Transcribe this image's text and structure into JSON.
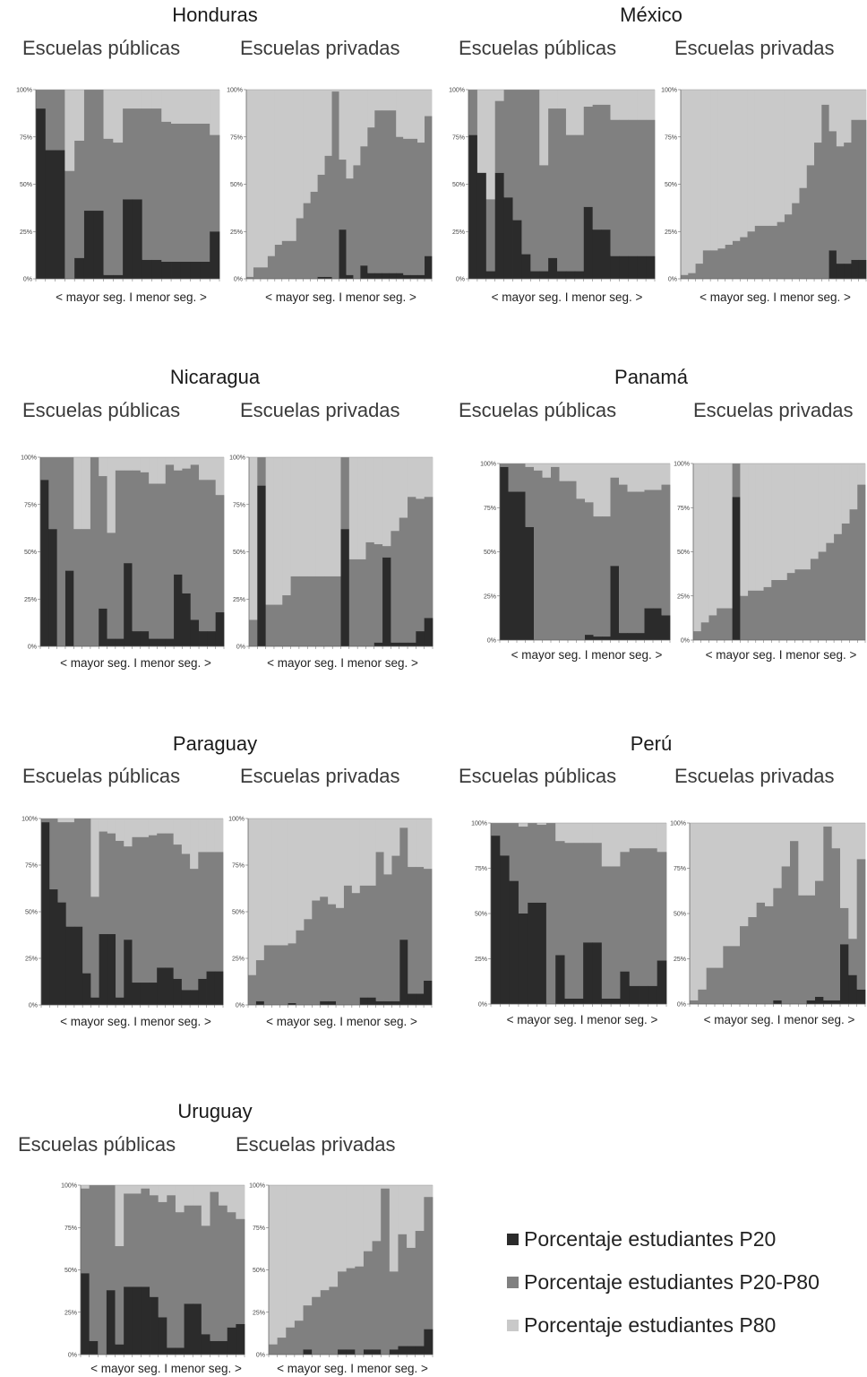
{
  "legend": {
    "p20": {
      "label": "Porcentaje estudiantes P20",
      "color": "#2b2b2b"
    },
    "mid": {
      "label": "Porcentaje estudiantes P20-P80",
      "color": "#808080"
    },
    "p80": {
      "label": "Porcentaje estudiantes P80",
      "color": "#c9c9c9"
    }
  },
  "y_ticks": [
    "0%",
    "25%",
    "50%",
    "75%",
    "100%"
  ],
  "chart_data": [
    {
      "country": "Honduras",
      "public_label": "Escuelas públicas",
      "private_label": "Escuelas privadas",
      "xlabel": "< mayor seg. I menor seg. >",
      "public": {
        "type": "stacked-bar",
        "ylim": [
          0,
          100
        ],
        "p20": [
          90,
          68,
          68,
          0,
          11,
          36,
          36,
          2,
          2,
          42,
          42,
          10,
          10,
          9,
          9,
          9,
          9,
          9,
          25
        ],
        "p20_80": [
          10,
          32,
          32,
          57,
          62,
          64,
          64,
          72,
          70,
          48,
          48,
          80,
          80,
          74,
          73,
          73,
          73,
          73,
          51
        ]
      },
      "private": {
        "type": "stacked-bar",
        "ylim": [
          0,
          100
        ],
        "p20": [
          0,
          0,
          0,
          0,
          0,
          0,
          0,
          0,
          0,
          0,
          1,
          1,
          0,
          26,
          2,
          0,
          7,
          3,
          3,
          3,
          3,
          3,
          2,
          2,
          2,
          12
        ],
        "p20_80": [
          1,
          6,
          6,
          12,
          18,
          20,
          20,
          32,
          40,
          46,
          54,
          64,
          99,
          37,
          51,
          60,
          63,
          77,
          86,
          86,
          86,
          72,
          72,
          72,
          70,
          74
        ]
      }
    },
    {
      "country": "México",
      "public_label": "Escuelas públicas",
      "private_label": "Escuelas privadas",
      "xlabel": "< mayor seg. I menor seg. >",
      "public": {
        "type": "stacked-bar",
        "ylim": [
          0,
          100
        ],
        "p20": [
          76,
          56,
          4,
          56,
          43,
          31,
          13,
          4,
          4,
          11,
          4,
          4,
          4,
          38,
          26,
          26,
          12,
          12,
          12,
          12,
          12
        ],
        "p20_80": [
          24,
          0,
          38,
          38,
          57,
          69,
          87,
          96,
          56,
          79,
          86,
          72,
          72,
          53,
          66,
          66,
          72,
          72,
          72,
          72,
          72
        ]
      },
      "private": {
        "type": "stacked-bar",
        "ylim": [
          0,
          100
        ],
        "p20": [
          0,
          0,
          0,
          0,
          0,
          0,
          0,
          0,
          0,
          0,
          0,
          0,
          0,
          0,
          0,
          0,
          0,
          0,
          0,
          0,
          15,
          8,
          8,
          10,
          10
        ],
        "p20_80": [
          2,
          3,
          8,
          15,
          15,
          16,
          18,
          20,
          22,
          25,
          28,
          28,
          28,
          30,
          34,
          40,
          48,
          60,
          72,
          92,
          63,
          62,
          64,
          74,
          74
        ]
      }
    },
    {
      "country": "Nicaragua",
      "public_label": "Escuelas públicas",
      "private_label": "Escuelas privadas",
      "xlabel": "< mayor seg. I menor seg. >",
      "public": {
        "type": "stacked-bar",
        "ylim": [
          0,
          100
        ],
        "p20": [
          88,
          62,
          0,
          40,
          0,
          0,
          0,
          20,
          4,
          4,
          44,
          8,
          8,
          4,
          4,
          4,
          38,
          28,
          14,
          8,
          8,
          18
        ],
        "p20_80": [
          12,
          38,
          100,
          60,
          62,
          62,
          100,
          70,
          56,
          89,
          49,
          85,
          84,
          82,
          82,
          92,
          55,
          66,
          82,
          80,
          80,
          62
        ]
      },
      "private": {
        "type": "stacked-bar",
        "ylim": [
          0,
          100
        ],
        "p20": [
          0,
          85,
          0,
          0,
          0,
          0,
          0,
          0,
          0,
          0,
          0,
          62,
          0,
          0,
          0,
          2,
          47,
          2,
          2,
          2,
          8,
          15
        ],
        "p20_80": [
          14,
          15,
          22,
          22,
          27,
          37,
          37,
          37,
          37,
          37,
          37,
          38,
          46,
          46,
          55,
          52,
          6,
          59,
          66,
          77,
          70,
          64
        ]
      }
    },
    {
      "country": "Panamá",
      "public_label": "Escuelas públicas",
      "private_label": "Escuelas privadas",
      "xlabel": "< mayor seg. I menor seg. >",
      "public": {
        "type": "stacked-bar",
        "ylim": [
          0,
          100
        ],
        "p20": [
          98,
          84,
          84,
          64,
          0,
          0,
          0,
          0,
          0,
          0,
          3,
          2,
          2,
          42,
          4,
          4,
          4,
          18,
          18,
          14
        ],
        "p20_80": [
          2,
          16,
          16,
          34,
          96,
          92,
          98,
          90,
          90,
          80,
          75,
          68,
          68,
          50,
          84,
          80,
          80,
          67,
          67,
          74
        ]
      },
      "private": {
        "type": "stacked-bar",
        "ylim": [
          0,
          100
        ],
        "p20": [
          0,
          0,
          0,
          0,
          0,
          81,
          0,
          0,
          0,
          0,
          0,
          0,
          0,
          0,
          0,
          0,
          0,
          0,
          0,
          0,
          0,
          0
        ],
        "p20_80": [
          5,
          10,
          14,
          18,
          18,
          19,
          25,
          28,
          28,
          30,
          34,
          34,
          38,
          40,
          40,
          46,
          50,
          55,
          60,
          66,
          74,
          88
        ]
      }
    },
    {
      "country": "Paraguay",
      "public_label": "Escuelas públicas",
      "private_label": "Escuelas privadas",
      "xlabel": "< mayor seg. I menor seg. >",
      "public": {
        "type": "stacked-bar",
        "ylim": [
          0,
          100
        ],
        "p20": [
          98,
          62,
          55,
          42,
          42,
          17,
          4,
          38,
          38,
          4,
          35,
          12,
          12,
          12,
          20,
          20,
          14,
          8,
          8,
          14,
          18,
          18
        ],
        "p20_80": [
          2,
          38,
          43,
          56,
          58,
          83,
          54,
          55,
          54,
          84,
          50,
          78,
          78,
          79,
          72,
          72,
          72,
          73,
          65,
          68,
          64,
          64
        ]
      },
      "private": {
        "type": "stacked-bar",
        "ylim": [
          0,
          100
        ],
        "p20": [
          0,
          2,
          0,
          0,
          0,
          1,
          0,
          0,
          0,
          2,
          2,
          0,
          0,
          0,
          4,
          4,
          2,
          2,
          2,
          35,
          6,
          6,
          13
        ],
        "p20_80": [
          16,
          22,
          32,
          32,
          32,
          32,
          40,
          46,
          56,
          56,
          52,
          52,
          64,
          60,
          60,
          60,
          80,
          68,
          78,
          60,
          68,
          68,
          60
        ]
      }
    },
    {
      "country": "Perú",
      "public_label": "Escuelas públicas",
      "private_label": "Escuelas privadas",
      "xlabel": "< mayor seg. I menor seg. >",
      "public": {
        "type": "stacked-bar",
        "ylim": [
          0,
          100
        ],
        "p20": [
          93,
          82,
          68,
          50,
          56,
          56,
          0,
          27,
          3,
          3,
          34,
          34,
          3,
          3,
          18,
          10,
          10,
          10,
          24
        ],
        "p20_80": [
          7,
          18,
          32,
          48,
          44,
          43,
          100,
          63,
          86,
          86,
          55,
          55,
          73,
          73,
          66,
          76,
          76,
          76,
          60
        ]
      },
      "private": {
        "type": "stacked-bar",
        "ylim": [
          0,
          100
        ],
        "p20": [
          0,
          0,
          0,
          0,
          0,
          0,
          0,
          0,
          0,
          0,
          2,
          0,
          0,
          0,
          2,
          4,
          2,
          2,
          33,
          16,
          8
        ],
        "p20_80": [
          2,
          8,
          20,
          20,
          32,
          32,
          43,
          48,
          56,
          54,
          62,
          76,
          90,
          60,
          58,
          64,
          96,
          84,
          20,
          20,
          72
        ]
      }
    },
    {
      "country": "Uruguay",
      "public_label": "Escuelas públicas",
      "private_label": "Escuelas privadas",
      "xlabel": "< mayor seg. I menor seg. >",
      "public": {
        "type": "stacked-bar",
        "ylim": [
          0,
          100
        ],
        "p20": [
          48,
          8,
          0,
          38,
          6,
          40,
          40,
          40,
          34,
          22,
          4,
          4,
          30,
          30,
          12,
          8,
          8,
          16,
          18
        ],
        "p20_80": [
          50,
          92,
          100,
          62,
          58,
          55,
          55,
          58,
          60,
          68,
          90,
          80,
          58,
          58,
          64,
          88,
          80,
          68,
          62
        ]
      },
      "private": {
        "type": "stacked-bar",
        "ylim": [
          0,
          100
        ],
        "p20": [
          0,
          0,
          0,
          0,
          3,
          0,
          0,
          0,
          3,
          3,
          0,
          3,
          3,
          0,
          3,
          5,
          5,
          5,
          15
        ],
        "p20_80": [
          6,
          10,
          16,
          20,
          26,
          34,
          38,
          40,
          46,
          48,
          52,
          58,
          64,
          98,
          46,
          66,
          58,
          68,
          78
        ]
      }
    }
  ]
}
